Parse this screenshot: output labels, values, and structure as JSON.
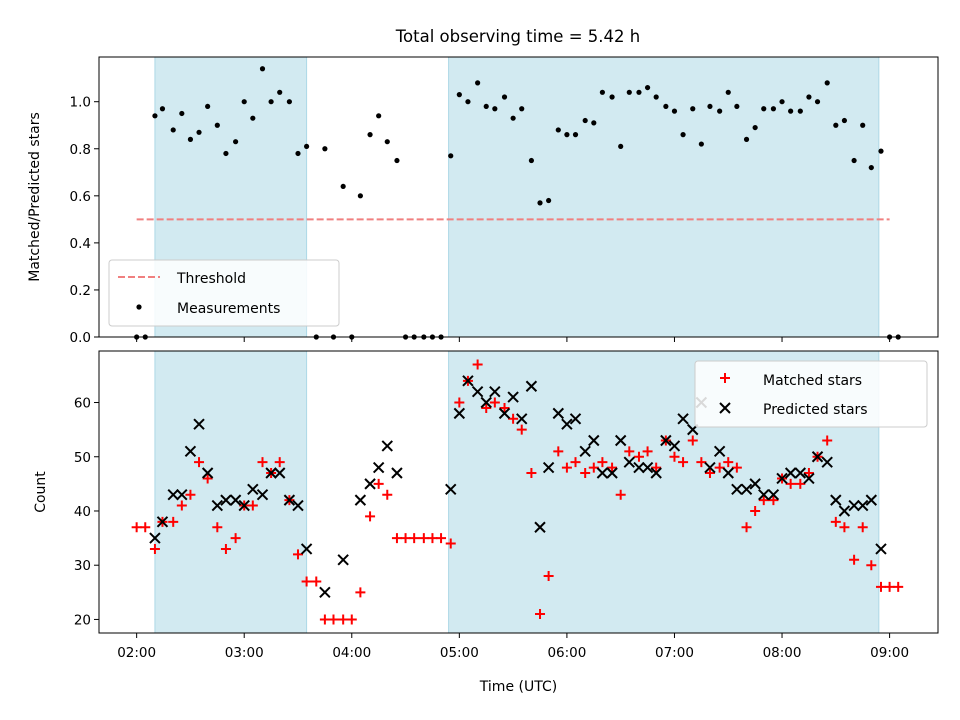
{
  "title": "Total observing time = 5.42 h",
  "colors": {
    "shade": "#add8e6",
    "threshold": "#f08080",
    "measurements": "#000000",
    "matched": "#ff0000",
    "predicted": "#000000"
  },
  "chart_data": [
    {
      "type": "scatter",
      "ylabel": "Matched/Predicted stars",
      "ylim": [
        0,
        1.19
      ],
      "yticks": [
        "0.0",
        "0.2",
        "0.4",
        "0.6",
        "0.8",
        "1.0"
      ],
      "ytick_values": [
        0,
        0.2,
        0.4,
        0.6,
        0.8,
        1.0
      ],
      "xlim": [
        1.65,
        9.45
      ],
      "shaded_regions": [
        [
          2.17,
          3.58
        ],
        [
          4.9,
          8.9
        ]
      ],
      "legend_position": "lower-left",
      "series": [
        {
          "name": "Threshold",
          "kind": "dashed-line",
          "x": [
            2.0,
            9.0
          ],
          "y": [
            0.5,
            0.5
          ]
        },
        {
          "name": "Measurements",
          "kind": "dots",
          "x": [
            2.0,
            2.08,
            2.17,
            2.24,
            2.34,
            2.42,
            2.5,
            2.58,
            2.66,
            2.75,
            2.83,
            2.92,
            3.0,
            3.08,
            3.17,
            3.25,
            3.33,
            3.42,
            3.5,
            3.58,
            3.67,
            3.75,
            3.83,
            3.92,
            4.0,
            4.08,
            4.17,
            4.25,
            4.33,
            4.42,
            4.5,
            4.58,
            4.67,
            4.75,
            4.83,
            4.92,
            5.0,
            5.08,
            5.17,
            5.25,
            5.33,
            5.42,
            5.5,
            5.58,
            5.67,
            5.75,
            5.83,
            5.92,
            6.0,
            6.08,
            6.17,
            6.25,
            6.33,
            6.42,
            6.5,
            6.58,
            6.67,
            6.75,
            6.83,
            6.92,
            7.0,
            7.08,
            7.17,
            7.25,
            7.33,
            7.42,
            7.5,
            7.58,
            7.67,
            7.75,
            7.83,
            7.92,
            8.0,
            8.08,
            8.17,
            8.25,
            8.33,
            8.42,
            8.5,
            8.58,
            8.67,
            8.75,
            8.83,
            8.92,
            9.0,
            9.08
          ],
          "y": [
            0.0,
            0.0,
            0.94,
            0.97,
            0.88,
            0.95,
            0.84,
            0.87,
            0.98,
            0.9,
            0.78,
            0.83,
            1.0,
            0.93,
            1.14,
            1.0,
            1.04,
            1.0,
            0.78,
            0.81,
            0.0,
            0.8,
            0.0,
            0.64,
            0.0,
            0.6,
            0.86,
            0.94,
            0.83,
            0.75,
            0.0,
            0.0,
            0.0,
            0.0,
            0.0,
            0.77,
            1.03,
            1.0,
            1.08,
            0.98,
            0.97,
            1.02,
            0.93,
            0.97,
            0.75,
            0.57,
            0.58,
            0.88,
            0.86,
            0.86,
            0.92,
            0.91,
            1.04,
            1.02,
            0.81,
            1.04,
            1.04,
            1.06,
            1.02,
            0.98,
            0.96,
            0.86,
            0.97,
            0.82,
            0.98,
            0.96,
            1.04,
            0.98,
            0.84,
            0.89,
            0.97,
            0.97,
            1.0,
            0.96,
            0.96,
            1.02,
            1.0,
            1.08,
            0.9,
            0.92,
            0.75,
            0.9,
            0.72,
            0.79,
            0.0,
            0.0
          ]
        }
      ]
    },
    {
      "type": "scatter",
      "xlabel": "Time (UTC)",
      "ylabel": "Count",
      "ylim": [
        17.5,
        69.5
      ],
      "yticks": [
        "20",
        "30",
        "40",
        "50",
        "60"
      ],
      "ytick_values": [
        20,
        30,
        40,
        50,
        60
      ],
      "xlim": [
        1.65,
        9.45
      ],
      "xticks": [
        "02:00",
        "03:00",
        "04:00",
        "05:00",
        "06:00",
        "07:00",
        "08:00",
        "09:00"
      ],
      "xtick_values": [
        2,
        3,
        4,
        5,
        6,
        7,
        8,
        9
      ],
      "shaded_regions": [
        [
          2.17,
          3.58
        ],
        [
          4.9,
          8.9
        ]
      ],
      "legend_position": "upper-right",
      "series": [
        {
          "name": "Matched stars",
          "kind": "plus",
          "x": [
            2.0,
            2.08,
            2.17,
            2.24,
            2.34,
            2.42,
            2.5,
            2.58,
            2.66,
            2.75,
            2.83,
            2.92,
            3.0,
            3.08,
            3.17,
            3.25,
            3.33,
            3.42,
            3.5,
            3.58,
            3.67,
            3.75,
            3.83,
            3.92,
            4.0,
            4.08,
            4.17,
            4.25,
            4.33,
            4.42,
            4.5,
            4.58,
            4.67,
            4.75,
            4.83,
            4.92,
            5.0,
            5.08,
            5.17,
            5.25,
            5.33,
            5.42,
            5.5,
            5.58,
            5.67,
            5.75,
            5.83,
            5.92,
            6.0,
            6.08,
            6.17,
            6.25,
            6.33,
            6.42,
            6.5,
            6.58,
            6.67,
            6.75,
            6.83,
            6.92,
            7.0,
            7.08,
            7.17,
            7.25,
            7.33,
            7.42,
            7.5,
            7.58,
            7.67,
            7.75,
            7.83,
            7.92,
            8.0,
            8.08,
            8.17,
            8.25,
            8.33,
            8.42,
            8.5,
            8.58,
            8.67,
            8.75,
            8.83,
            8.92,
            9.0,
            9.08
          ],
          "y": [
            37,
            37,
            33,
            38,
            38,
            41,
            43,
            49,
            46,
            37,
            33,
            35,
            41,
            41,
            49,
            47,
            49,
            42,
            32,
            27,
            27,
            20,
            20,
            20,
            20,
            25,
            39,
            45,
            43,
            35,
            35,
            35,
            35,
            35,
            35,
            34,
            60,
            64,
            67,
            59,
            60,
            59,
            57,
            55,
            47,
            21,
            28,
            51,
            48,
            49,
            47,
            48,
            49,
            48,
            43,
            51,
            50,
            51,
            48,
            53,
            50,
            49,
            53,
            49,
            47,
            48,
            49,
            48,
            37,
            40,
            42,
            42,
            46,
            45,
            45,
            47,
            50,
            53,
            38,
            37,
            31,
            37,
            30,
            26,
            26,
            26
          ]
        },
        {
          "name": "Predicted stars",
          "kind": "x",
          "x": [
            2.17,
            2.24,
            2.34,
            2.42,
            2.5,
            2.58,
            2.66,
            2.75,
            2.83,
            2.92,
            3.0,
            3.08,
            3.17,
            3.25,
            3.33,
            3.42,
            3.5,
            3.58,
            3.75,
            3.92,
            4.08,
            4.17,
            4.25,
            4.33,
            4.42,
            4.92,
            5.0,
            5.08,
            5.17,
            5.25,
            5.33,
            5.42,
            5.5,
            5.58,
            5.67,
            5.75,
            5.83,
            5.92,
            6.0,
            6.08,
            6.17,
            6.25,
            6.33,
            6.42,
            6.5,
            6.58,
            6.67,
            6.75,
            6.83,
            6.92,
            7.0,
            7.08,
            7.17,
            7.25,
            7.33,
            7.42,
            7.5,
            7.58,
            7.67,
            7.75,
            7.83,
            7.92,
            8.0,
            8.08,
            8.17,
            8.25,
            8.33,
            8.42,
            8.5,
            8.58,
            8.67,
            8.75,
            8.83,
            8.92
          ],
          "y": [
            35,
            38,
            43,
            43,
            51,
            56,
            47,
            41,
            42,
            42,
            41,
            44,
            43,
            47,
            47,
            42,
            41,
            33,
            25,
            31,
            42,
            45,
            48,
            52,
            47,
            44,
            58,
            64,
            62,
            60,
            62,
            58,
            61,
            57,
            63,
            37,
            48,
            58,
            56,
            57,
            51,
            53,
            47,
            47,
            53,
            49,
            48,
            48,
            47,
            53,
            52,
            57,
            55,
            60,
            48,
            51,
            47,
            44,
            44,
            45,
            43,
            43,
            46,
            47,
            47,
            46,
            50,
            49,
            42,
            40,
            41,
            41,
            42,
            33
          ]
        }
      ]
    }
  ]
}
